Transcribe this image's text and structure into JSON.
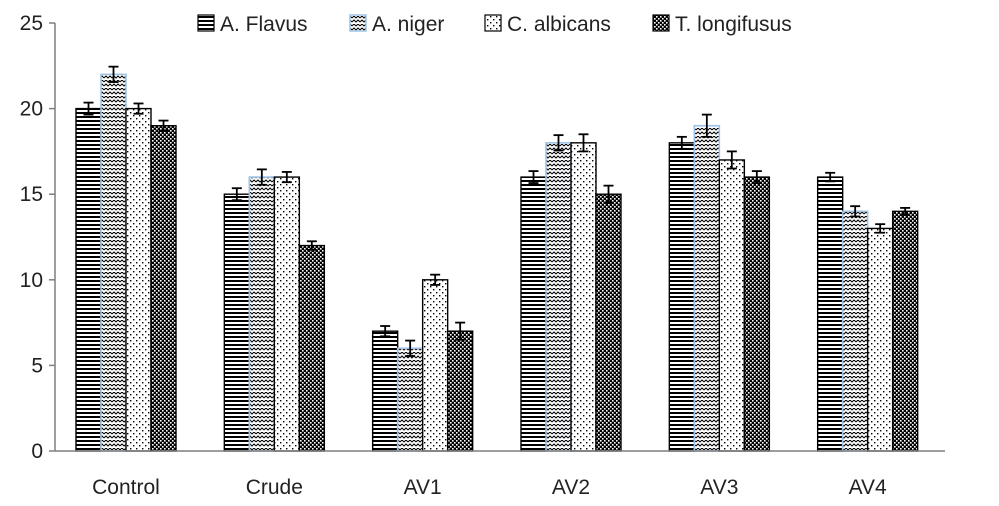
{
  "chart_data": {
    "type": "bar",
    "title": "",
    "xlabel": "",
    "ylabel": "",
    "ylim": [
      0,
      25
    ],
    "yticks": [
      0,
      5,
      10,
      15,
      20,
      25
    ],
    "legend_position": "top",
    "categories": [
      "Control",
      "Crude",
      "AV1",
      "AV2",
      "AV3",
      "AV4"
    ],
    "series": [
      {
        "name": "A. Flavus",
        "pattern": "horizontal-lines",
        "values": [
          20,
          15,
          7,
          16,
          18,
          16
        ],
        "errors": [
          0.35,
          0.35,
          0.3,
          0.35,
          0.35,
          0.25
        ]
      },
      {
        "name": "A. niger",
        "pattern": "zigzag",
        "values": [
          22,
          16,
          6,
          18,
          19,
          14
        ],
        "errors": [
          0.45,
          0.45,
          0.45,
          0.45,
          0.65,
          0.3
        ]
      },
      {
        "name": "C. albicans",
        "pattern": "sparse-dots",
        "values": [
          20,
          16,
          10,
          18,
          17,
          13
        ],
        "errors": [
          0.3,
          0.3,
          0.3,
          0.5,
          0.5,
          0.25
        ]
      },
      {
        "name": "T. longifusus",
        "pattern": "dense-checker",
        "values": [
          19,
          12,
          7,
          15,
          16,
          14
        ],
        "errors": [
          0.3,
          0.25,
          0.5,
          0.5,
          0.35,
          0.2
        ]
      }
    ],
    "colors": {
      "axis": "#7f7f7f",
      "bar_edge": "#000000",
      "niger_edge": "#9dc3e6",
      "background": "#ffffff"
    }
  }
}
